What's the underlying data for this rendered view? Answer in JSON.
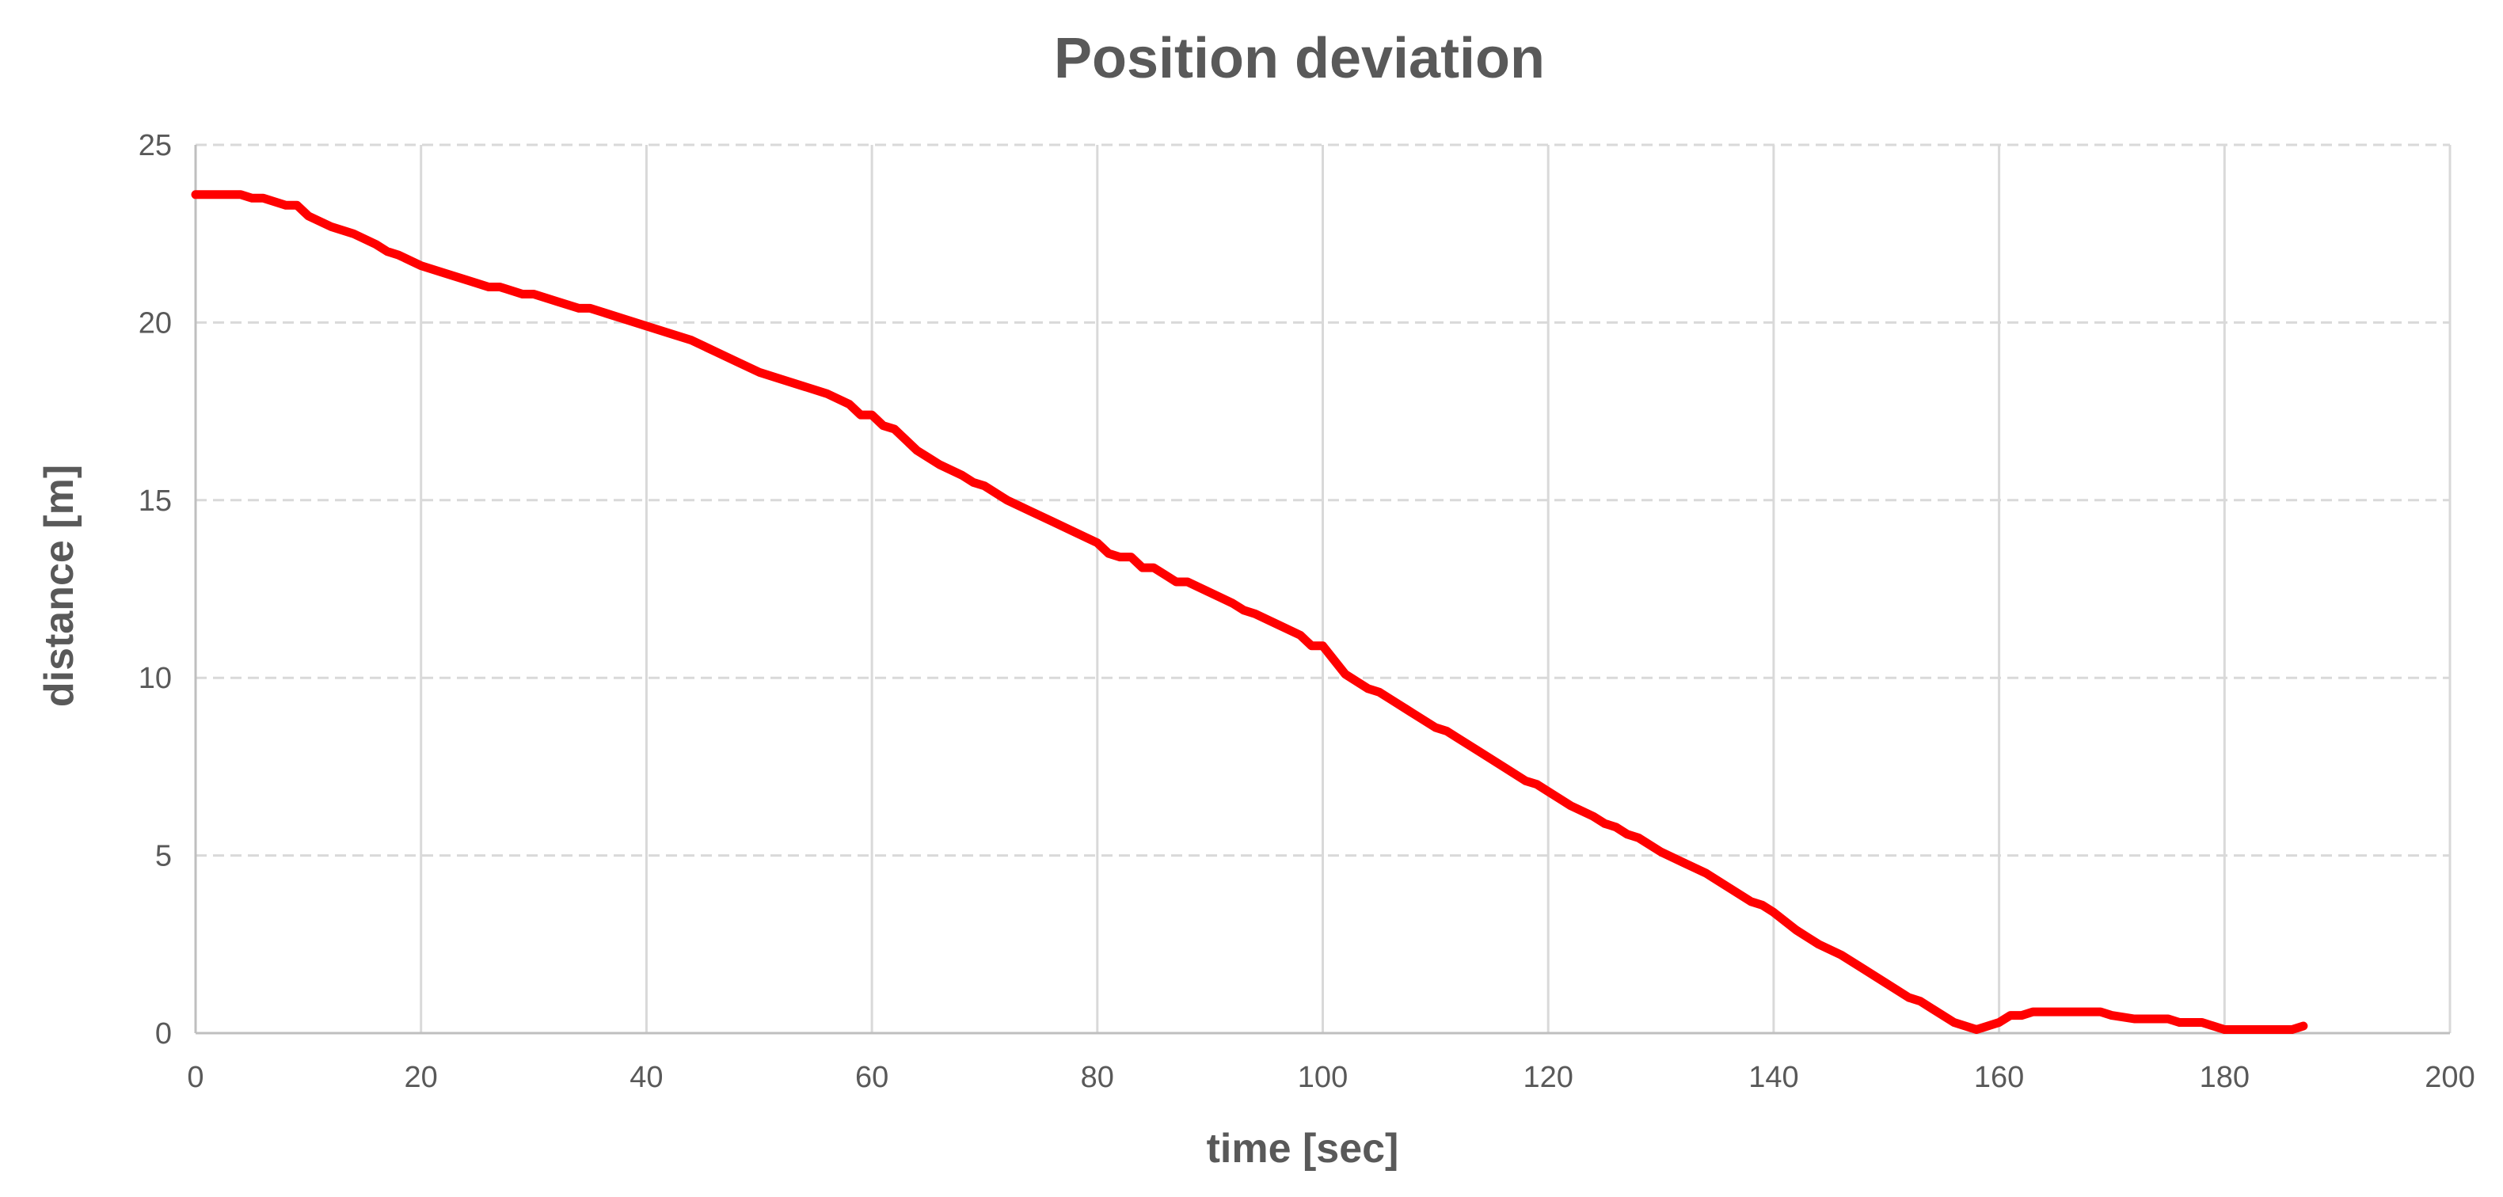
{
  "chart_data": {
    "type": "line",
    "title": "Position deviation",
    "xlabel": "time [sec]",
    "ylabel": "distance [m]",
    "xlim": [
      0,
      200
    ],
    "ylim": [
      0,
      25
    ],
    "xticks": [
      "0",
      "20",
      "40",
      "60",
      "80",
      "100",
      "120",
      "140",
      "160",
      "180",
      "200"
    ],
    "yticks": [
      "0",
      "5",
      "10",
      "15",
      "20",
      "25"
    ],
    "grid": true,
    "legend": "none",
    "line_color": "#ff0000",
    "series": [
      {
        "x": [
          0,
          1,
          2,
          3,
          4,
          5,
          6,
          7,
          8,
          9,
          10,
          12,
          14,
          16,
          17,
          18,
          20,
          22,
          24,
          25,
          26,
          27,
          28,
          29,
          30,
          31,
          32,
          34,
          35,
          36,
          38,
          40,
          42,
          44,
          46,
          48,
          50,
          51,
          52,
          54,
          56,
          58,
          59,
          60,
          61,
          62,
          64,
          65,
          66,
          68,
          69,
          70,
          72,
          74,
          76,
          78,
          80,
          81,
          82,
          83,
          84,
          85,
          86,
          87,
          88,
          90,
          92,
          93,
          94,
          96,
          98,
          99,
          100,
          102,
          104,
          105,
          106,
          108,
          110,
          111,
          112,
          114,
          116,
          118,
          119,
          120,
          122,
          124,
          125,
          126,
          127,
          128,
          130,
          132,
          134,
          136,
          138,
          139,
          140,
          142,
          144,
          146,
          148,
          150,
          152,
          153,
          154,
          156,
          158,
          159,
          160,
          161,
          162,
          163,
          164,
          166,
          168,
          169,
          170,
          172,
          174,
          175,
          176,
          178,
          179,
          180,
          182,
          184,
          186,
          187
        ],
        "y": [
          23.6,
          23.6,
          23.6,
          23.6,
          23.6,
          23.5,
          23.5,
          23.4,
          23.3,
          23.3,
          23.0,
          22.7,
          22.5,
          22.2,
          22.0,
          21.9,
          21.6,
          21.4,
          21.2,
          21.1,
          21.0,
          21.0,
          20.9,
          20.8,
          20.8,
          20.7,
          20.6,
          20.4,
          20.4,
          20.3,
          20.1,
          19.9,
          19.7,
          19.5,
          19.2,
          18.9,
          18.6,
          18.5,
          18.4,
          18.2,
          18.0,
          17.7,
          17.4,
          17.4,
          17.1,
          17.0,
          16.4,
          16.2,
          16.0,
          15.7,
          15.5,
          15.4,
          15.0,
          14.7,
          14.4,
          14.1,
          13.8,
          13.5,
          13.4,
          13.4,
          13.1,
          13.1,
          12.9,
          12.7,
          12.7,
          12.4,
          12.1,
          11.9,
          11.8,
          11.5,
          11.2,
          10.9,
          10.9,
          10.1,
          9.7,
          9.6,
          9.4,
          9.0,
          8.6,
          8.5,
          8.3,
          7.9,
          7.5,
          7.1,
          7.0,
          6.8,
          6.4,
          6.1,
          5.9,
          5.8,
          5.6,
          5.5,
          5.1,
          4.8,
          4.5,
          4.1,
          3.7,
          3.6,
          3.4,
          2.9,
          2.5,
          2.2,
          1.8,
          1.4,
          1.0,
          0.9,
          0.7,
          0.3,
          0.1,
          0.2,
          0.3,
          0.5,
          0.5,
          0.6,
          0.6,
          0.6,
          0.6,
          0.6,
          0.5,
          0.4,
          0.4,
          0.4,
          0.3,
          0.3,
          0.2,
          0.1,
          0.1,
          0.1,
          0.1,
          0.2
        ]
      }
    ]
  }
}
